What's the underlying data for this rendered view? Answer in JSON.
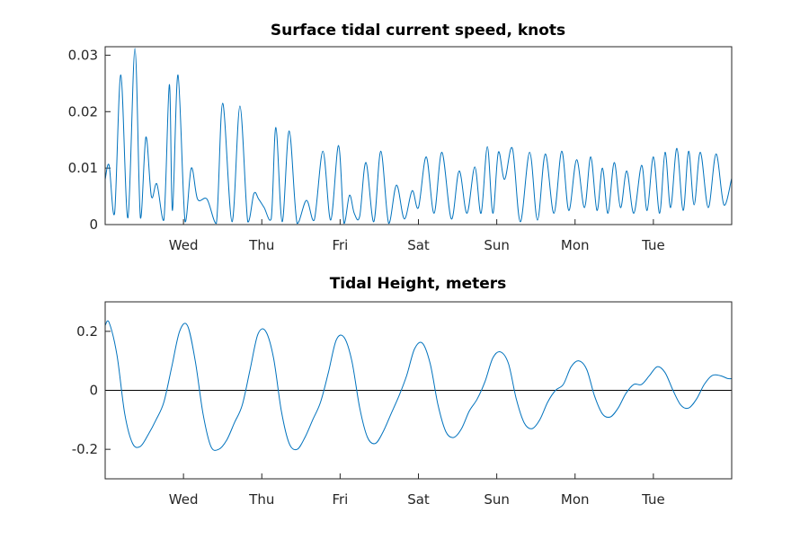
{
  "chart_data": [
    {
      "type": "line",
      "title": "Surface tidal current speed, knots",
      "xlabel": "",
      "ylabel": "",
      "x_unit": "days",
      "xlim": [
        0,
        8
      ],
      "ylim": [
        0,
        0.0315
      ],
      "yticks": [
        0,
        0.01,
        0.02,
        0.03
      ],
      "ytick_labels": [
        "0",
        "0.01",
        "0.02",
        "0.03"
      ],
      "xticks": [
        1,
        2,
        3,
        4,
        5,
        6,
        7
      ],
      "xtick_labels": [
        "Wed",
        "Thu",
        "Fri",
        "Sat",
        "Sun",
        "Mon",
        "Tue"
      ],
      "grid": false,
      "series": [
        {
          "color": "#0072BD",
          "x": [
            0,
            0.05,
            0.12,
            0.2,
            0.29,
            0.38,
            0.45,
            0.52,
            0.59,
            0.66,
            0.75,
            0.82,
            0.86,
            0.93,
            1.02,
            1.1,
            1.18,
            1.3,
            1.42,
            1.5,
            1.62,
            1.72,
            1.82,
            1.9,
            1.96,
            2.03,
            2.12,
            2.18,
            2.26,
            2.35,
            2.45,
            2.57,
            2.67,
            2.78,
            2.88,
            2.98,
            3.05,
            3.12,
            3.18,
            3.25,
            3.33,
            3.43,
            3.52,
            3.62,
            3.72,
            3.82,
            3.92,
            4.0,
            4.1,
            4.2,
            4.3,
            4.42,
            4.52,
            4.62,
            4.72,
            4.8,
            4.88,
            4.95,
            5.02,
            5.1,
            5.2,
            5.3,
            5.42,
            5.52,
            5.62,
            5.73,
            5.83,
            5.92,
            6.02,
            6.12,
            6.2,
            6.28,
            6.35,
            6.42,
            6.5,
            6.58,
            6.66,
            6.75,
            6.85,
            6.92,
            7.0,
            7.08,
            7.15,
            7.22,
            7.3,
            7.38,
            7.45,
            7.52,
            7.6,
            7.7,
            7.8,
            7.9,
            8.0
          ],
          "values": [
            0.008,
            0.0105,
            0.002,
            0.0265,
            0.0012,
            0.0312,
            0.0012,
            0.0155,
            0.005,
            0.0072,
            0.0008,
            0.0248,
            0.0025,
            0.0265,
            0.0005,
            0.01,
            0.0045,
            0.0045,
            0.0002,
            0.0215,
            0.0005,
            0.021,
            0.0005,
            0.0055,
            0.0045,
            0.003,
            0.001,
            0.0172,
            0.0005,
            0.0166,
            0.0002,
            0.0043,
            0.0008,
            0.013,
            0.0008,
            0.014,
            0.0002,
            0.0052,
            0.002,
            0.0015,
            0.011,
            0.0005,
            0.013,
            0.0002,
            0.007,
            0.001,
            0.006,
            0.003,
            0.012,
            0.002,
            0.0128,
            0.001,
            0.0095,
            0.002,
            0.0102,
            0.002,
            0.0138,
            0.002,
            0.0128,
            0.008,
            0.0135,
            0.0005,
            0.0128,
            0.0008,
            0.0125,
            0.002,
            0.013,
            0.0025,
            0.0115,
            0.003,
            0.012,
            0.0025,
            0.01,
            0.002,
            0.011,
            0.003,
            0.0095,
            0.002,
            0.0105,
            0.0025,
            0.012,
            0.002,
            0.0128,
            0.003,
            0.0135,
            0.0025,
            0.013,
            0.0035,
            0.0128,
            0.003,
            0.0125,
            0.0035,
            0.0082
          ]
        }
      ]
    },
    {
      "type": "line",
      "title": "Tidal Height, meters",
      "xlabel": "",
      "ylabel": "",
      "x_unit": "days",
      "xlim": [
        0,
        8
      ],
      "ylim": [
        -0.3,
        0.3
      ],
      "yticks": [
        -0.2,
        0,
        0.2
      ],
      "ytick_labels": [
        "-0.2",
        "0",
        "0.2"
      ],
      "xticks": [
        1,
        2,
        3,
        4,
        5,
        6,
        7
      ],
      "xtick_labels": [
        "Wed",
        "Thu",
        "Fri",
        "Sat",
        "Sun",
        "Mon",
        "Tue"
      ],
      "grid": false,
      "zero_line": true,
      "series": [
        {
          "color": "#0072BD",
          "x": [
            0,
            0.05,
            0.15,
            0.25,
            0.35,
            0.45,
            0.55,
            0.65,
            0.75,
            0.85,
            0.95,
            1.05,
            1.15,
            1.25,
            1.35,
            1.45,
            1.55,
            1.65,
            1.75,
            1.85,
            1.95,
            2.05,
            2.15,
            2.25,
            2.35,
            2.45,
            2.55,
            2.65,
            2.75,
            2.85,
            2.95,
            3.05,
            3.15,
            3.25,
            3.35,
            3.45,
            3.55,
            3.65,
            3.75,
            3.85,
            3.95,
            4.05,
            4.15,
            4.25,
            4.35,
            4.45,
            4.55,
            4.65,
            4.75,
            4.85,
            4.95,
            5.05,
            5.15,
            5.25,
            5.35,
            5.45,
            5.55,
            5.65,
            5.75,
            5.85,
            5.95,
            6.05,
            6.15,
            6.25,
            6.35,
            6.45,
            6.55,
            6.65,
            6.75,
            6.85,
            6.95,
            7.05,
            7.15,
            7.25,
            7.35,
            7.45,
            7.55,
            7.65,
            7.75,
            7.85,
            7.95,
            8.0
          ],
          "values": [
            0.22,
            0.23,
            0.12,
            -0.08,
            -0.18,
            -0.19,
            -0.15,
            -0.1,
            -0.04,
            0.08,
            0.2,
            0.22,
            0.1,
            -0.08,
            -0.19,
            -0.2,
            -0.17,
            -0.11,
            -0.05,
            0.07,
            0.19,
            0.2,
            0.11,
            -0.07,
            -0.18,
            -0.2,
            -0.16,
            -0.1,
            -0.04,
            0.06,
            0.17,
            0.18,
            0.1,
            -0.06,
            -0.16,
            -0.18,
            -0.14,
            -0.08,
            -0.02,
            0.05,
            0.14,
            0.16,
            0.09,
            -0.05,
            -0.14,
            -0.16,
            -0.13,
            -0.07,
            -0.03,
            0.03,
            0.11,
            0.13,
            0.09,
            -0.03,
            -0.11,
            -0.13,
            -0.1,
            -0.04,
            0.0,
            0.02,
            0.08,
            0.1,
            0.07,
            -0.02,
            -0.08,
            -0.09,
            -0.06,
            -0.01,
            0.02,
            0.02,
            0.05,
            0.08,
            0.06,
            0.0,
            -0.05,
            -0.06,
            -0.03,
            0.02,
            0.05,
            0.05,
            0.04,
            0.04
          ]
        }
      ]
    }
  ]
}
